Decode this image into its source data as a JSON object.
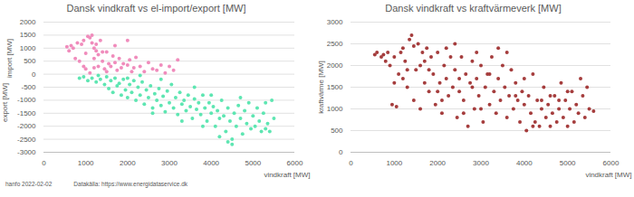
{
  "chart_data": [
    {
      "type": "scatter",
      "title": "Dansk vindkraft vs el-import/export [MW]",
      "xlabel": "vindkraft [MW]",
      "ylabel_positive": "import [MW]",
      "ylabel_negative": "export [MW]",
      "xlim": [
        0,
        6000
      ],
      "xticks": [
        0,
        1000,
        2000,
        3000,
        4000,
        5000,
        6000
      ],
      "ylim": [
        -3000,
        2000
      ],
      "yticks": [
        -3000,
        -2500,
        -2000,
        -1500,
        -1000,
        -500,
        0,
        500,
        1000,
        1500,
        2000
      ],
      "grid": true,
      "series": [
        {
          "color": "#f08cbc",
          "x": [
            550,
            600,
            650,
            700,
            750,
            800,
            850,
            900,
            950,
            1000,
            1050,
            1100,
            1150,
            1150,
            1200,
            1200,
            1250,
            1300,
            1300,
            1350,
            1400,
            1450,
            1500,
            1500,
            1550,
            1600,
            1650,
            1700,
            1750,
            1800,
            1850,
            1900,
            2000,
            2050,
            2100,
            2150,
            2200,
            2300,
            2400,
            2500,
            2600,
            2700,
            2800,
            2900,
            3000,
            3100,
            3200,
            950,
            1000,
            1100,
            1200,
            1400,
            1700,
            2000,
            1250
          ],
          "y": [
            1050,
            900,
            1100,
            1000,
            600,
            1200,
            500,
            1150,
            1300,
            800,
            1450,
            1400,
            1500,
            1200,
            1000,
            600,
            900,
            300,
            750,
            1300,
            500,
            200,
            850,
            100,
            400,
            300,
            700,
            450,
            150,
            600,
            250,
            400,
            350,
            550,
            100,
            250,
            650,
            300,
            100,
            450,
            200,
            150,
            350,
            50,
            300,
            150,
            550,
            300,
            200,
            50,
            250,
            850,
            1100,
            1300,
            1150
          ]
        },
        {
          "color": "#5ee6b2",
          "x": [
            850,
            950,
            1050,
            1150,
            1250,
            1350,
            1450,
            1500,
            1550,
            1600,
            1650,
            1700,
            1750,
            1800,
            1850,
            1900,
            1950,
            2000,
            2000,
            2050,
            2100,
            2150,
            2200,
            2250,
            2300,
            2350,
            2400,
            2450,
            2500,
            2550,
            2600,
            2650,
            2700,
            2750,
            2800,
            2850,
            2900,
            2950,
            3000,
            3050,
            3100,
            3150,
            3200,
            3250,
            3300,
            3350,
            3400,
            3450,
            3500,
            3550,
            3600,
            3650,
            3700,
            3750,
            3800,
            3850,
            3900,
            3950,
            4000,
            4050,
            4100,
            4150,
            4200,
            4250,
            4300,
            4350,
            4400,
            4450,
            4500,
            4550,
            4600,
            4650,
            4700,
            4750,
            4800,
            4850,
            4900,
            4950,
            5000,
            5050,
            5100,
            5150,
            5200,
            5250,
            5300,
            5350,
            5400,
            5450,
            5500,
            4500,
            4200,
            3800,
            1300,
            2300,
            2800,
            3600,
            4000,
            4700,
            5300,
            4400,
            3300,
            2600
          ],
          "y": [
            -150,
            -100,
            -250,
            -150,
            -300,
            -200,
            -400,
            -100,
            -550,
            -250,
            -700,
            -150,
            -450,
            -350,
            -800,
            -200,
            -600,
            -150,
            -900,
            -400,
            -700,
            -250,
            -1000,
            -500,
            -800,
            -300,
            -1150,
            -600,
            -900,
            -450,
            -1300,
            -750,
            -1000,
            -550,
            -1200,
            -850,
            -1450,
            -650,
            -1100,
            -400,
            -1300,
            -900,
            -1550,
            -700,
            -1150,
            -1000,
            -1400,
            -800,
            -1250,
            -1700,
            -950,
            -1350,
            -1100,
            -1550,
            -800,
            -1300,
            -1800,
            -1100,
            -1500,
            -1250,
            -2000,
            -1400,
            -1700,
            -1000,
            -1600,
            -2200,
            -1300,
            -1800,
            -2500,
            -1500,
            -2000,
            -1200,
            -1700,
            -2300,
            -1400,
            -1900,
            -1100,
            -2100,
            -1600,
            -2000,
            -1300,
            -1800,
            -2200,
            -1500,
            -2100,
            -1900,
            -2200,
            -1000,
            -1700,
            -2700,
            -2400,
            -2000,
            -50,
            -50,
            -200,
            -500,
            -800,
            -900,
            -1100,
            -2600,
            -1800,
            -1500
          ]
        }
      ]
    },
    {
      "type": "scatter",
      "title": "Dansk vindkraft vs kraftvärmeverk [MW]",
      "xlabel": "vindkraft [MW]",
      "ylabel": "kraftvärme [MW]",
      "xlim": [
        0,
        6000
      ],
      "xticks": [
        0,
        1000,
        2000,
        3000,
        4000,
        5000,
        6000
      ],
      "ylim": [
        0,
        3000
      ],
      "yticks": [
        0,
        500,
        1000,
        1500,
        2000,
        2500,
        3000
      ],
      "grid": true,
      "series": [
        {
          "color": "#a53d3d",
          "x": [
            550,
            600,
            700,
            750,
            800,
            850,
            900,
            950,
            1000,
            1050,
            1100,
            1150,
            1200,
            1250,
            1300,
            1350,
            1400,
            1450,
            1450,
            1500,
            1550,
            1600,
            1650,
            1700,
            1750,
            1800,
            1850,
            1900,
            1950,
            2000,
            2050,
            2100,
            2150,
            2200,
            2250,
            2300,
            2350,
            2400,
            2450,
            2500,
            2550,
            2600,
            2650,
            2700,
            2750,
            2800,
            2850,
            2900,
            2950,
            3000,
            3050,
            3100,
            3150,
            3200,
            3250,
            3300,
            3350,
            3400,
            3450,
            3500,
            3550,
            3600,
            3650,
            3700,
            3750,
            3800,
            3850,
            3900,
            3950,
            4000,
            4050,
            4100,
            4150,
            4200,
            4250,
            4300,
            4350,
            4400,
            4450,
            4500,
            4550,
            4600,
            4650,
            4700,
            4750,
            4800,
            4850,
            4900,
            4950,
            5000,
            5050,
            5100,
            5150,
            5200,
            5250,
            5300,
            5350,
            5400,
            5450,
            5500,
            5600,
            1000,
            1200,
            1600,
            2000,
            2400,
            2800,
            3200,
            3600,
            4000,
            4400,
            4800,
            1800,
            2200,
            2600,
            3000,
            3400,
            3800,
            4200,
            4600,
            5000,
            1300,
            1700,
            2100,
            2500,
            2900
          ],
          "y": [
            2250,
            2300,
            2200,
            2250,
            2100,
            2300,
            2000,
            1100,
            2200,
            1050,
            1800,
            2300,
            1700,
            2100,
            1500,
            2600,
            2700,
            1200,
            2450,
            1900,
            2500,
            1000,
            2300,
            1600,
            2400,
            1400,
            2200,
            1800,
            1100,
            2300,
            1600,
            900,
            2000,
            1700,
            1300,
            2200,
            1500,
            1900,
            800,
            1700,
            2200,
            1200,
            1800,
            600,
            1600,
            2100,
            1000,
            1700,
            1300,
            2000,
            700,
            1500,
            1800,
            1100,
            2200,
            1400,
            900,
            1700,
            1200,
            2000,
            1500,
            800,
            1300,
            1900,
            1000,
            1600,
            1200,
            700,
            1400,
            1100,
            500,
            1300,
            900,
            1800,
            700,
            1200,
            600,
            1000,
            1500,
            800,
            1100,
            600,
            900,
            1300,
            700,
            1000,
            1600,
            800,
            1200,
            600,
            1000,
            1400,
            700,
            1100,
            900,
            1700,
            1300,
            800,
            1500,
            1000,
            950,
            1600,
            2400,
            2000,
            1400,
            2500,
            1500,
            1800,
            2300,
            1700,
            1200,
            1200,
            1900,
            2400,
            900,
            1000,
            2400,
            1300,
            600,
            1300,
            1400,
            1900,
            2100,
            1200,
            1400,
            2300
          ]
        }
      ]
    }
  ],
  "footer": [
    "hanfo 2022-02-02",
    "Datakälla: https://www.energidataservice.dk"
  ]
}
